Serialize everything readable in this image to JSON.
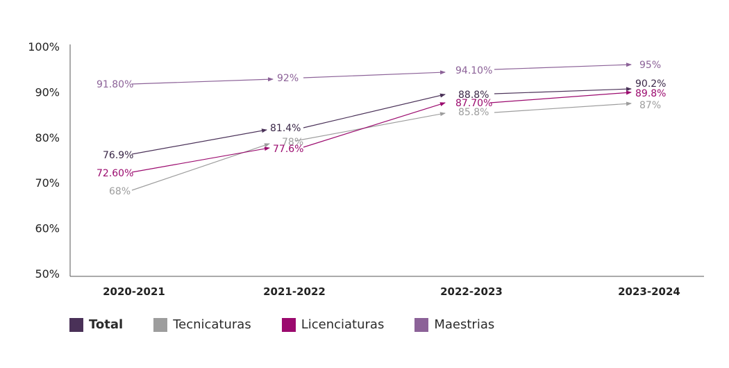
{
  "chart_data": {
    "type": "line",
    "categories": [
      "2020-2021",
      "2021-2022",
      "2022-2023",
      "2023-2024"
    ],
    "ylim": [
      50,
      100
    ],
    "yticks": [
      "50%",
      "60%",
      "70%",
      "80%",
      "90%",
      "100%"
    ],
    "ytick_values": [
      50,
      60,
      70,
      80,
      90,
      100
    ],
    "grid": false,
    "legend_position": "bottom-left",
    "series": [
      {
        "name": "Total",
        "color": "#4a3158",
        "values": [
          76.9,
          81.4,
          88.8,
          90.2
        ],
        "labels": [
          "76.9%",
          "81.4%",
          "88.8%",
          "90.2%"
        ]
      },
      {
        "name": "Tecnicaturas",
        "color": "#9d9d9d",
        "values": [
          68,
          78,
          85.8,
          87
        ],
        "labels": [
          "68%",
          "78%",
          "85.8%",
          "87%"
        ]
      },
      {
        "name": "Licenciaturas",
        "color": "#9b0a6e",
        "values": [
          72.6,
          77.6,
          87.7,
          89.8
        ],
        "labels": [
          "72.60%",
          "77.6%",
          "87.70%",
          "89.8%"
        ]
      },
      {
        "name": "Maestrias",
        "color": "#8c6298",
        "values": [
          91.8,
          92,
          94.1,
          95
        ],
        "labels": [
          "91.80%",
          "92%",
          "94.10%",
          "95%"
        ]
      }
    ]
  }
}
